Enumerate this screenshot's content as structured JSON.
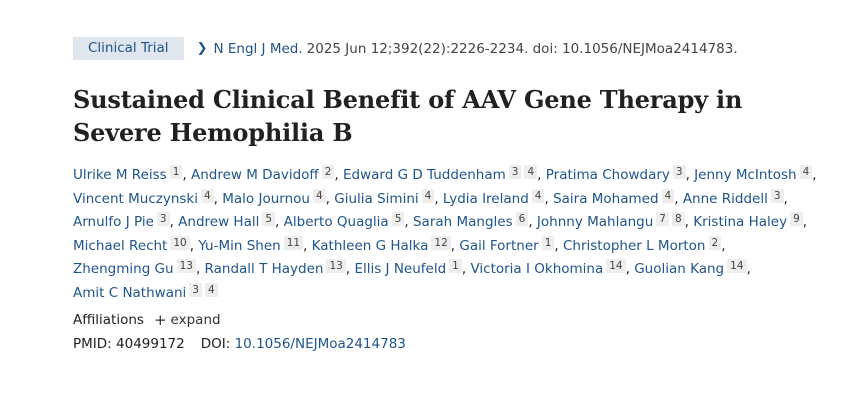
{
  "header": {
    "publication_type": "Clinical Trial",
    "journal": "N Engl J Med.",
    "citation": "2025 Jun 12;392(22):2226-2234. doi: 10.1056/NEJMoa2414783."
  },
  "title_line1": "Sustained Clinical Benefit of AAV Gene Therapy in",
  "title_line2": "Severe Hemophilia B",
  "authors": [
    {
      "name": "Ulrike M Reiss",
      "affs": [
        "1"
      ]
    },
    {
      "name": "Andrew M Davidoff",
      "affs": [
        "2"
      ]
    },
    {
      "name": "Edward G D Tuddenham",
      "affs": [
        "3",
        "4"
      ]
    },
    {
      "name": "Pratima Chowdary",
      "affs": [
        "3"
      ]
    },
    {
      "name": "Jenny McIntosh",
      "affs": [
        "4"
      ]
    },
    {
      "name": "Vincent Muczynski",
      "affs": [
        "4"
      ]
    },
    {
      "name": "Malo Journou",
      "affs": [
        "4"
      ]
    },
    {
      "name": "Giulia Simini",
      "affs": [
        "4"
      ]
    },
    {
      "name": "Lydia Ireland",
      "affs": [
        "4"
      ]
    },
    {
      "name": "Saira Mohamed",
      "affs": [
        "4"
      ]
    },
    {
      "name": "Anne Riddell",
      "affs": [
        "3"
      ]
    },
    {
      "name": "Arnulfo J Pie",
      "affs": [
        "3"
      ]
    },
    {
      "name": "Andrew Hall",
      "affs": [
        "5"
      ]
    },
    {
      "name": "Alberto Quaglia",
      "affs": [
        "5"
      ]
    },
    {
      "name": "Sarah Mangles",
      "affs": [
        "6"
      ]
    },
    {
      "name": "Johnny Mahlangu",
      "affs": [
        "7",
        "8"
      ]
    },
    {
      "name": "Kristina Haley",
      "affs": [
        "9"
      ]
    },
    {
      "name": "Michael Recht",
      "affs": [
        "10"
      ]
    },
    {
      "name": "Yu-Min Shen",
      "affs": [
        "11"
      ]
    },
    {
      "name": "Kathleen G Halka",
      "affs": [
        "12"
      ]
    },
    {
      "name": "Gail Fortner",
      "affs": [
        "1"
      ]
    },
    {
      "name": "Christopher L Morton",
      "affs": [
        "2"
      ]
    },
    {
      "name": "Zhengming Gu",
      "affs": [
        "13"
      ]
    },
    {
      "name": "Randall T Hayden",
      "affs": [
        "13"
      ]
    },
    {
      "name": "Ellis J Neufeld",
      "affs": [
        "1"
      ]
    },
    {
      "name": "Victoria I Okhomina",
      "affs": [
        "14"
      ]
    },
    {
      "name": "Guolian Kang",
      "affs": [
        "14"
      ]
    },
    {
      "name": "Amit C Nathwani",
      "affs": [
        "3",
        "4"
      ]
    }
  ],
  "affiliations": {
    "label": "Affiliations",
    "expand_label": "expand",
    "expand_icon": "plus-icon"
  },
  "ids": {
    "pmid_label": "PMID:",
    "pmid": "40499172",
    "doi_label": "DOI:",
    "doi": "10.1056/NEJMoa2414783"
  },
  "colors": {
    "link": "#20558a",
    "badge_bg": "#dfe6ee",
    "text": "#212121"
  }
}
